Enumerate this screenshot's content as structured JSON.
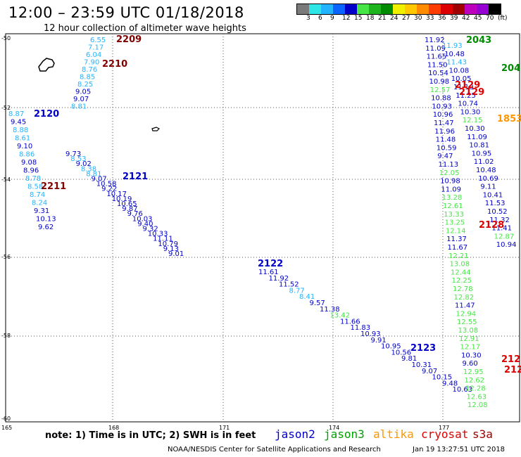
{
  "title": "12:00 – 23:59 UTC 01/18/2018",
  "subtitle": "12 hour collection of altimeter wave heights",
  "colorbar": {
    "colors": [
      "#7a7a7a",
      "#2ee6e6",
      "#22b4ff",
      "#0a64ff",
      "#0000c8",
      "#46e646",
      "#1eb41e",
      "#008c00",
      "#f0f000",
      "#ffc800",
      "#ff8c00",
      "#ff3c00",
      "#dc0000",
      "#a00000",
      "#be00be",
      "#9600d2",
      "#000000"
    ],
    "labels": [
      "3",
      "6",
      "9",
      "12",
      "15",
      "18",
      "21",
      "24",
      "27",
      "30",
      "33",
      "36",
      "39",
      "42",
      "45",
      "70",
      "(ft)"
    ]
  },
  "lat_labels": [
    "-50",
    "-52",
    "-54",
    "-56",
    "-58",
    "-60"
  ],
  "lon_labels": [
    "165",
    "168",
    "171",
    "174",
    "177"
  ],
  "tracks": [
    {
      "id": "2209",
      "color": "#800000",
      "points": [
        [
          "6.55",
          "#22b4ff"
        ],
        [
          "7.17",
          "#22b4ff"
        ],
        [
          "6.04",
          "#22b4ff"
        ],
        [
          "7.90",
          "#22b4ff"
        ],
        [
          "8.76",
          "#22b4ff"
        ],
        [
          "8.85",
          "#22b4ff"
        ],
        [
          "8.25",
          "#22b4ff"
        ],
        [
          "9.05",
          "#0000c8"
        ],
        [
          "9.07",
          "#0000c8"
        ],
        [
          "8.81",
          "#22b4ff"
        ]
      ]
    },
    {
      "id": "2210",
      "color": "#800000",
      "points": []
    },
    {
      "id": "2120",
      "color": "#0000c8",
      "points": [
        [
          "8.87",
          "#22b4ff"
        ],
        [
          "9.45",
          "#0000c8"
        ],
        [
          "8.88",
          "#22b4ff"
        ],
        [
          "8.61",
          "#22b4ff"
        ],
        [
          "9.10",
          "#0000c8"
        ],
        [
          "8.86",
          "#22b4ff"
        ],
        [
          "9.08",
          "#0000c8"
        ],
        [
          "8.96",
          "#0000c8"
        ],
        [
          "8.78",
          "#22b4ff"
        ],
        [
          "8.58",
          "#22b4ff"
        ],
        [
          "8.74",
          "#22b4ff"
        ],
        [
          "8.24",
          "#22b4ff"
        ],
        [
          "9.31",
          "#0000c8"
        ],
        [
          "10.13",
          "#0000c8"
        ],
        [
          "9.62",
          "#0000c8"
        ]
      ]
    },
    {
      "id": "2211",
      "color": "#800000",
      "points": []
    },
    {
      "id": "2121",
      "color": "#0000c8",
      "points": [
        [
          "9.73",
          "#0000c8"
        ],
        [
          "8.53",
          "#22b4ff"
        ],
        [
          "9.02",
          "#0000c8"
        ],
        [
          "8.38",
          "#22b4ff"
        ],
        [
          "8.81",
          "#22b4ff"
        ],
        [
          "9.07",
          "#0000c8"
        ],
        [
          "10.58",
          "#0000c8"
        ],
        [
          "9.22",
          "#0000c8"
        ],
        [
          "10.17",
          "#0000c8"
        ],
        [
          "10.19",
          "#0000c8"
        ],
        [
          "10.65",
          "#0000c8"
        ],
        [
          "9.87",
          "#0000c8"
        ],
        [
          "9.76",
          "#0000c8"
        ],
        [
          "10.03",
          "#0000c8"
        ],
        [
          "9.40",
          "#0000c8"
        ],
        [
          "9.32",
          "#0000c8"
        ],
        [
          "10.33",
          "#0000c8"
        ],
        [
          "11.11",
          "#0000c8"
        ],
        [
          "10.79",
          "#0000c8"
        ],
        [
          "9.13",
          "#0000c8"
        ],
        [
          "9.01",
          "#0000c8"
        ]
      ]
    },
    {
      "id": "2122",
      "color": "#0000c8",
      "points": [
        [
          "11.61",
          "#0000c8"
        ],
        [
          "11.92",
          "#0000c8"
        ],
        [
          "11.52",
          "#0000c8"
        ],
        [
          "8.77",
          "#22b4ff"
        ],
        [
          "8.41",
          "#22b4ff"
        ],
        [
          "9.57",
          "#0000c8"
        ],
        [
          "11.38",
          "#0000c8"
        ],
        [
          "13.42",
          "#46e646"
        ],
        [
          "11.66",
          "#0000c8"
        ],
        [
          "11.83",
          "#0000c8"
        ],
        [
          "10.93",
          "#0000c8"
        ],
        [
          "9.91",
          "#0000c8"
        ],
        [
          "10.95",
          "#0000c8"
        ],
        [
          "10.56",
          "#0000c8"
        ],
        [
          "9.81",
          "#0000c8"
        ],
        [
          "10.31",
          "#0000c8"
        ],
        [
          "9.07",
          "#0000c8"
        ],
        [
          "10.15",
          "#0000c8"
        ],
        [
          "9.48",
          "#0000c8"
        ],
        [
          "10.63",
          "#0000c8"
        ]
      ]
    },
    {
      "id": "2123",
      "color": "#0000c8",
      "points": []
    }
  ],
  "east_tracks": {
    "col_a": [
      [
        "11.92",
        "#0000c8"
      ],
      [
        "11.09",
        "#0000c8"
      ],
      [
        "11.65",
        "#0000c8"
      ],
      [
        "11.50",
        "#0000c8"
      ],
      [
        "10.54",
        "#0000c8"
      ],
      [
        "10.98",
        "#0000c8"
      ],
      [
        "12.57",
        "#46e646"
      ],
      [
        "10.88",
        "#0000c8"
      ],
      [
        "10.93",
        "#0000c8"
      ],
      [
        "10.96",
        "#0000c8"
      ],
      [
        "11.47",
        "#0000c8"
      ],
      [
        "11.96",
        "#0000c8"
      ],
      [
        "11.48",
        "#0000c8"
      ],
      [
        "10.59",
        "#0000c8"
      ],
      [
        "9.47",
        "#0000c8"
      ],
      [
        "11.13",
        "#0000c8"
      ],
      [
        "12.05",
        "#46e646"
      ],
      [
        "10.98",
        "#0000c8"
      ],
      [
        "11.09",
        "#0000c8"
      ],
      [
        "13.28",
        "#46e646"
      ],
      [
        "12.61",
        "#46e646"
      ],
      [
        "13.33",
        "#46e646"
      ],
      [
        "13.25",
        "#46e646"
      ],
      [
        "12.14",
        "#46e646"
      ],
      [
        "11.37",
        "#0000c8"
      ],
      [
        "11.67",
        "#0000c8"
      ],
      [
        "12.21",
        "#46e646"
      ],
      [
        "13.08",
        "#46e646"
      ],
      [
        "12.44",
        "#46e646"
      ],
      [
        "12.25",
        "#46e646"
      ],
      [
        "12.78",
        "#46e646"
      ],
      [
        "12.82",
        "#46e646"
      ],
      [
        "11.47",
        "#0000c8"
      ],
      [
        "12.94",
        "#46e646"
      ],
      [
        "12.55",
        "#46e646"
      ],
      [
        "13.08",
        "#46e646"
      ],
      [
        "12.91",
        "#46e646"
      ],
      [
        "12.17",
        "#46e646"
      ],
      [
        "10.30",
        "#0000c8"
      ],
      [
        "9.60",
        "#0000c8"
      ],
      [
        "12.95",
        "#46e646"
      ],
      [
        "12.62",
        "#46e646"
      ],
      [
        "12.28",
        "#46e646"
      ],
      [
        "12.63",
        "#46e646"
      ],
      [
        "12.08",
        "#46e646"
      ]
    ],
    "col_b": [
      [
        "11.93",
        "#22b4ff"
      ],
      [
        "10.48",
        "#0000c8"
      ],
      [
        "11.43",
        "#22b4ff"
      ],
      [
        "10.08",
        "#0000c8"
      ],
      [
        "10.05",
        "#0000c8"
      ],
      [
        "11.10",
        "#0000c8"
      ],
      [
        "11.25",
        "#0000c8"
      ],
      [
        "10.74",
        "#0000c8"
      ],
      [
        "10.30",
        "#0000c8"
      ],
      [
        "12.15",
        "#46e646"
      ],
      [
        "10.30",
        "#0000c8"
      ],
      [
        "11.09",
        "#0000c8"
      ],
      [
        "10.81",
        "#0000c8"
      ],
      [
        "10.95",
        "#0000c8"
      ],
      [
        "11.02",
        "#0000c8"
      ],
      [
        "10.48",
        "#0000c8"
      ],
      [
        "10.69",
        "#0000c8"
      ],
      [
        "9.11",
        "#0000c8"
      ],
      [
        "10.41",
        "#0000c8"
      ],
      [
        "11.53",
        "#0000c8"
      ],
      [
        "10.52",
        "#0000c8"
      ],
      [
        "11.32",
        "#0000c8"
      ],
      [
        "11.41",
        "#0000c8"
      ],
      [
        "12.87",
        "#46e646"
      ],
      [
        "10.94",
        "#0000c8"
      ]
    ],
    "ids": [
      {
        "id": "2043",
        "color": "#008c00"
      },
      {
        "id": "204",
        "color": "#008c00"
      },
      {
        "id": "2129",
        "color": "#e00000"
      },
      {
        "id": "2129",
        "color": "#e00000"
      },
      {
        "id": "1853",
        "color": "#ff9600"
      },
      {
        "id": "2128",
        "color": "#e00000"
      },
      {
        "id": "212",
        "color": "#e00000"
      },
      {
        "id": "212",
        "color": "#e00000"
      }
    ]
  },
  "note": "note: 1) Time is in UTC; 2) SWH is in feet",
  "satellites": [
    {
      "name": "jason2",
      "color": "#0000c8"
    },
    {
      "name": "jason3",
      "color": "#00a000"
    },
    {
      "name": "altika",
      "color": "#ff9600"
    },
    {
      "name": "cryosat",
      "color": "#e00000"
    },
    {
      "name": "s3a",
      "color": "#a00000"
    }
  ],
  "footer_left": "NOAA/NESDIS Center for Satellite Applications and Research",
  "footer_right": "Jan 19 13:27:51 UTC 2018"
}
